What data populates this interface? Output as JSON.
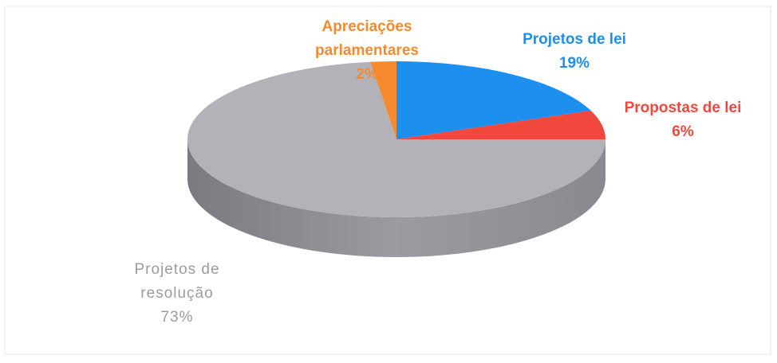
{
  "chart_data": {
    "type": "pie",
    "categories": [
      "Projetos de lei",
      "Propostas de lei",
      "Projetos de resolução",
      "Apreciações parlamentares"
    ],
    "values": [
      19,
      6,
      73,
      2
    ],
    "value_labels": [
      "19%",
      "6%",
      "73%",
      "2%"
    ],
    "colors": [
      "#1d8fee",
      "#f0483d",
      "#b3b2b8",
      "#f58a2e"
    ]
  }
}
